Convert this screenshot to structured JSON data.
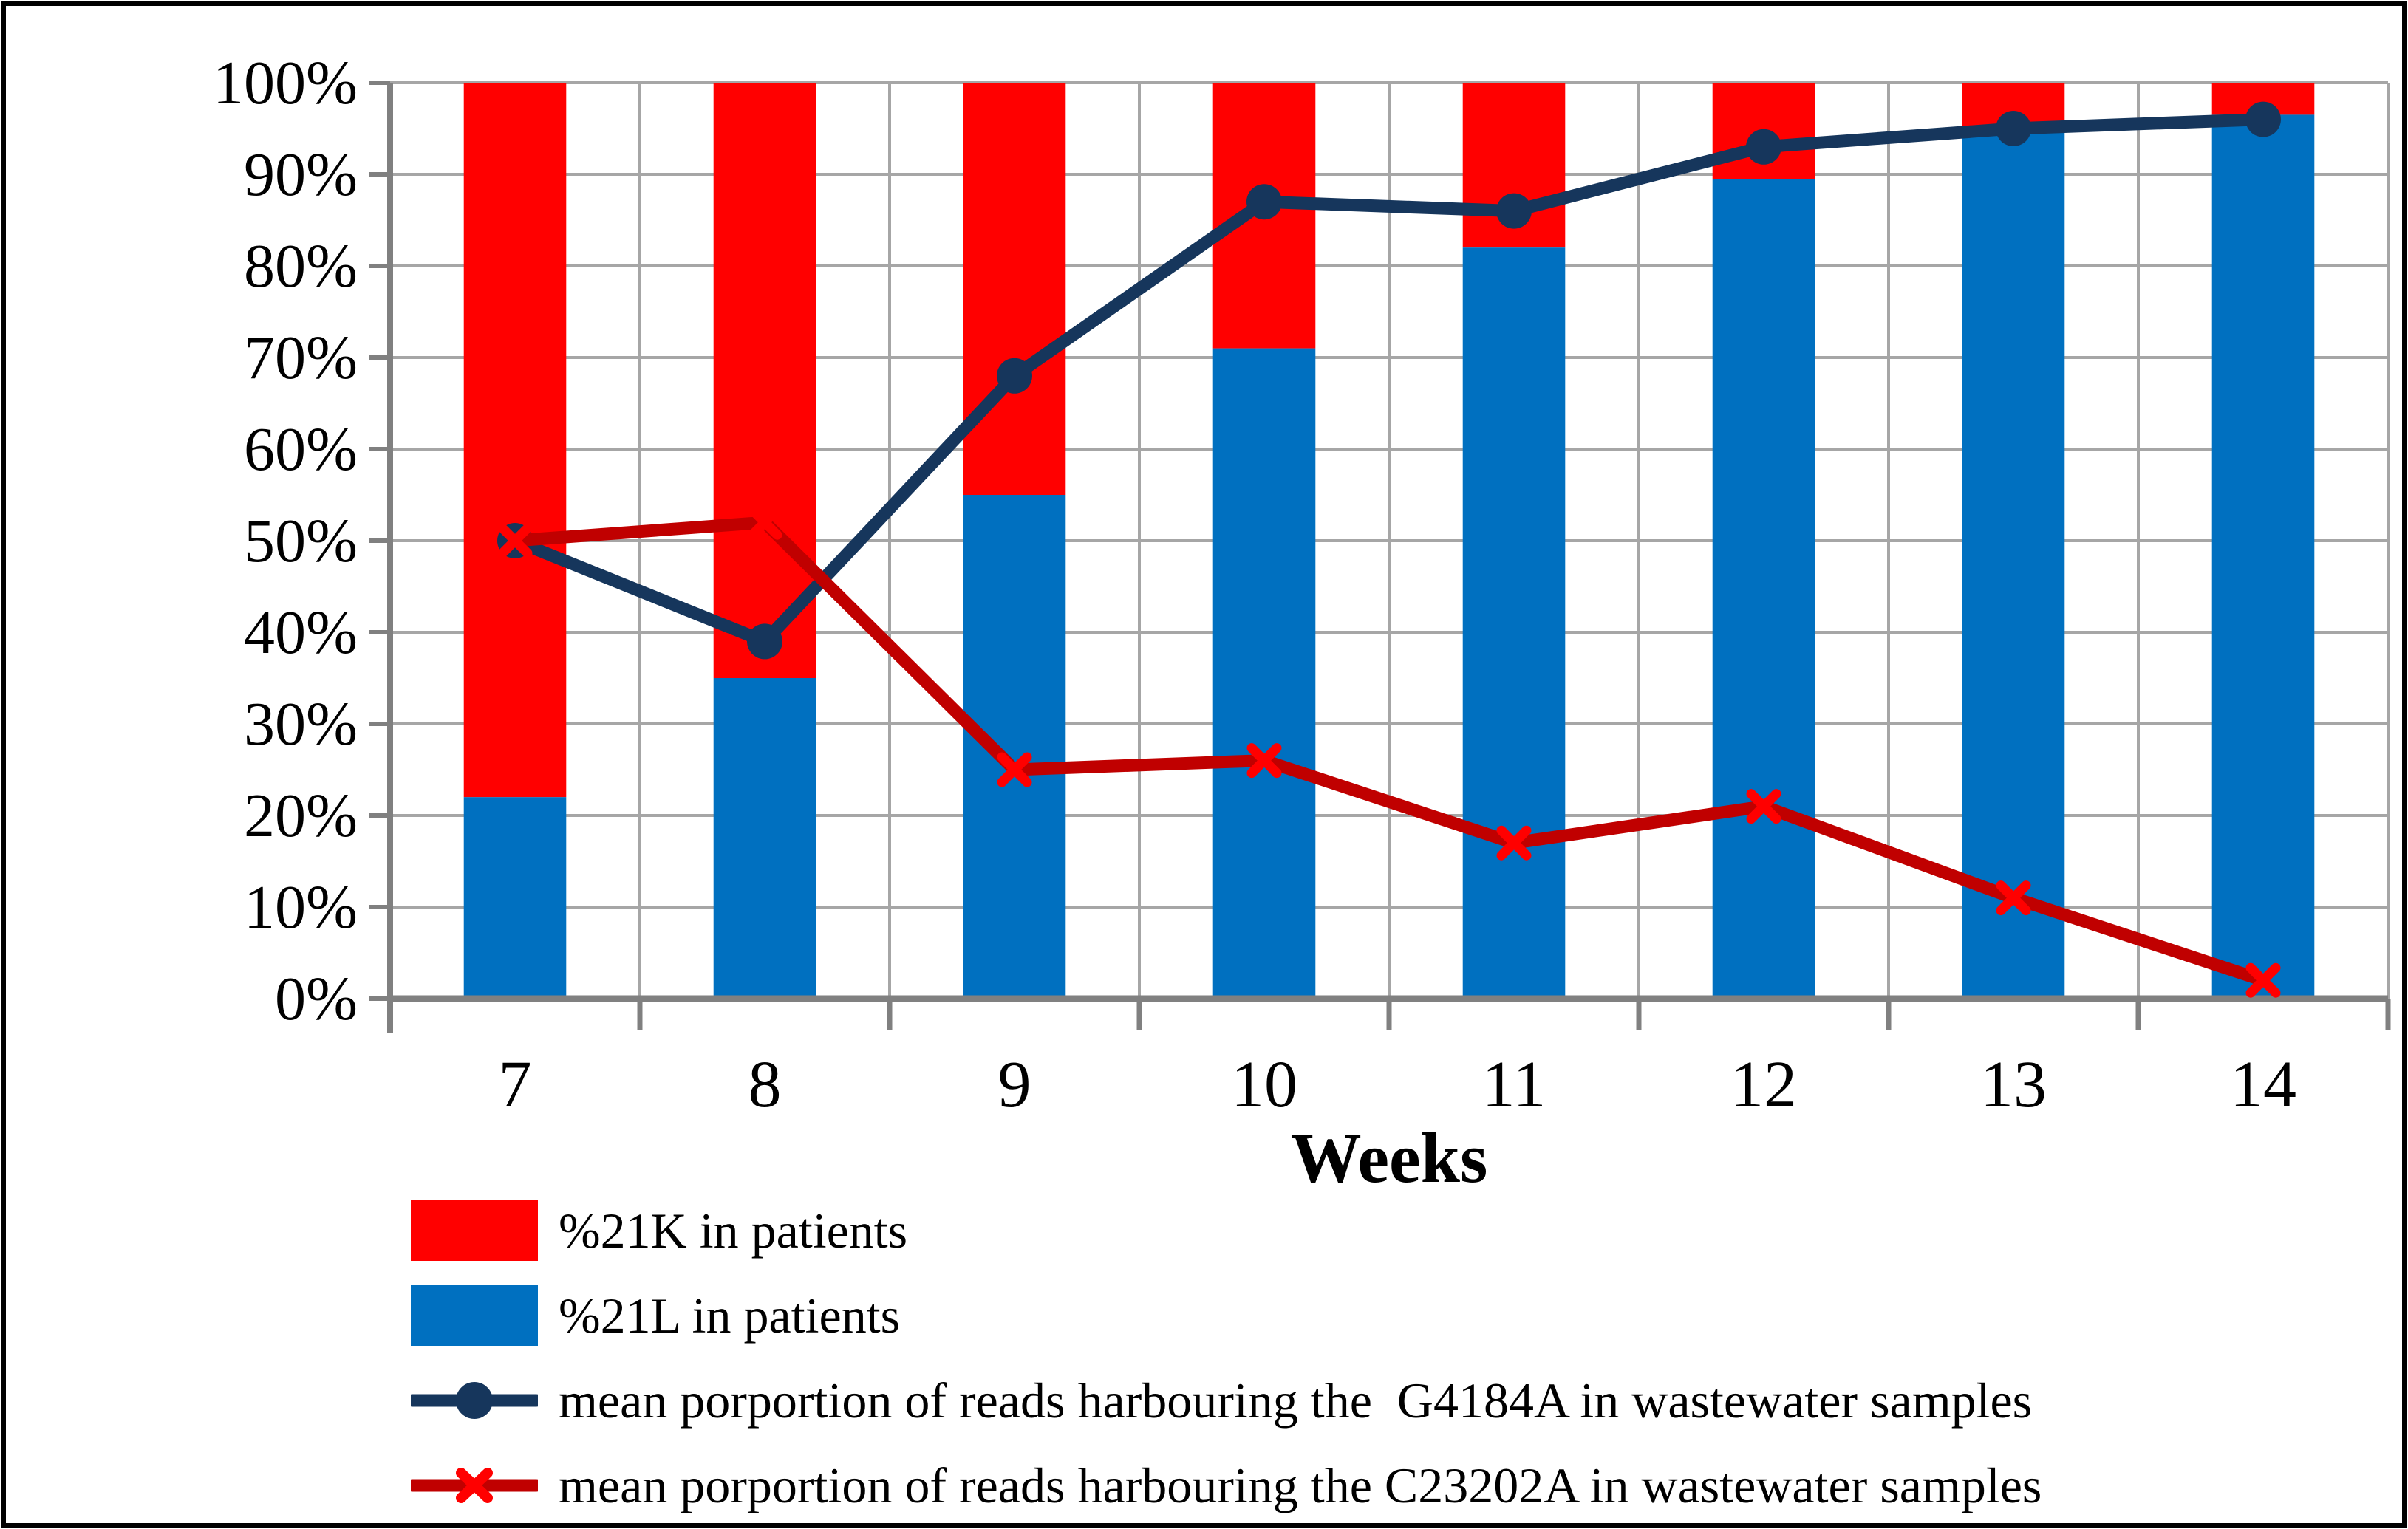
{
  "figure": {
    "background": "#FFFFFF",
    "border_color": "#000000"
  },
  "chart_data": {
    "type": "combo-stacked-bar-line",
    "x": [
      7,
      8,
      9,
      10,
      11,
      12,
      13,
      14
    ],
    "x_tick_labels": [
      "7",
      "8",
      "9",
      "10",
      "11",
      "12",
      "13",
      "14"
    ],
    "xlabel": "Weeks",
    "ylim": [
      0,
      100
    ],
    "y_step": 10,
    "y_tick_labels": [
      "0%",
      "10%",
      "20%",
      "30%",
      "40%",
      "50%",
      "60%",
      "70%",
      "80%",
      "90%",
      "100%"
    ],
    "grid": {
      "horizontal": true,
      "vertical": true,
      "color": "#A6A6A6",
      "axis_color": "#808080"
    },
    "legend_position": "bottom-left",
    "series": [
      {
        "name": "%21K in patients",
        "type": "bar-stacked-top",
        "color": "#FF0000",
        "values": [
          78,
          65,
          45,
          29,
          18,
          10.5,
          5,
          3.5
        ]
      },
      {
        "name": "%21L in patients",
        "type": "bar-stacked-bottom",
        "color": "#0070C0",
        "values": [
          22,
          35,
          55,
          71,
          82,
          89.5,
          95,
          96.5
        ]
      },
      {
        "name": "mean porportion of reads harbouring the  G4184A in wastewater samples",
        "type": "line",
        "color": "#16365C",
        "marker": "circle",
        "marker_color": "#16365C",
        "values": [
          50,
          39,
          68,
          87,
          86,
          93,
          95,
          96
        ]
      },
      {
        "name": "mean porportion of reads harbouring the C23202A in wastewater samples",
        "type": "line",
        "color": "#C00000",
        "marker": "x",
        "marker_color": "#FF0000",
        "values": [
          50,
          52,
          25,
          26,
          17,
          21,
          11,
          2
        ]
      }
    ]
  }
}
